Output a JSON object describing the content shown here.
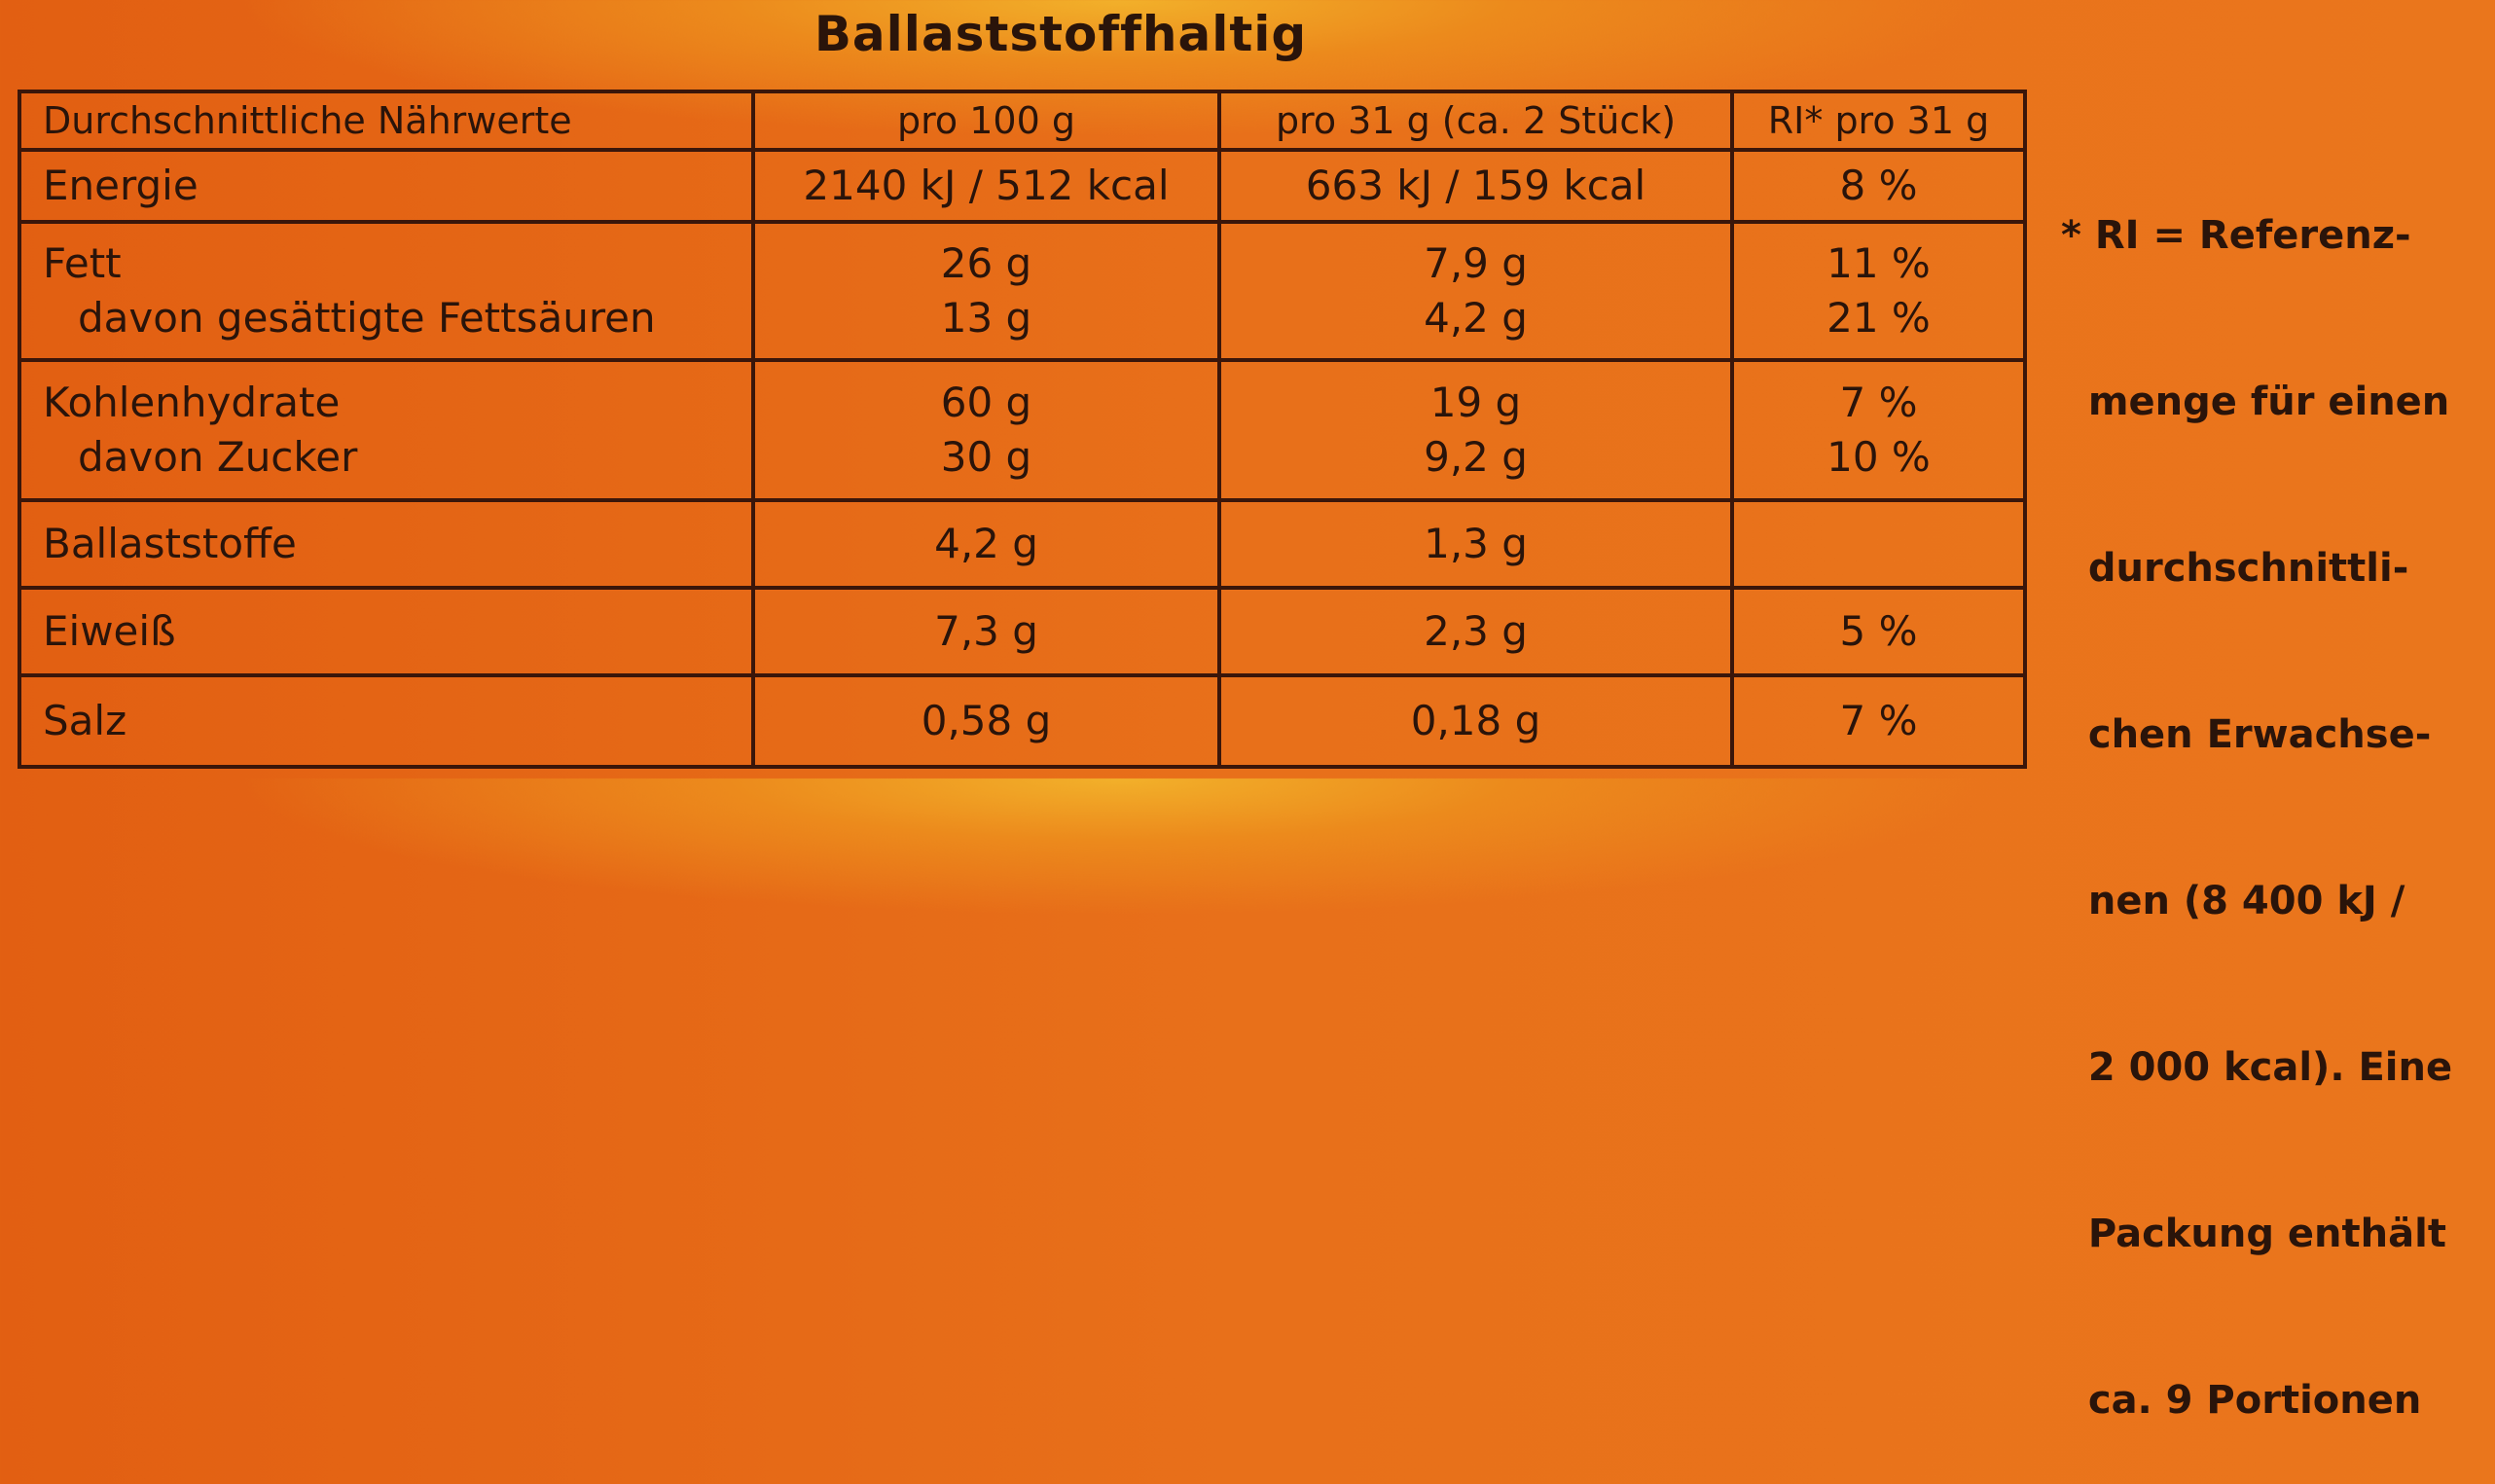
{
  "title": "Ballaststoffhaltig",
  "headers": [
    "Durchschnittliche Nährwerte",
    "pro 100 g",
    "pro 31 g (ca. 2 Stück)",
    "RI* pro 31 g"
  ],
  "rows": [
    {
      "label": "Energie",
      "per100": "2140 kJ / 512 kcal",
      "per31": "663 kJ / 159 kcal",
      "ri": "8 %"
    },
    {
      "label": "Fett",
      "per100": "26 g",
      "per31": "7,9 g",
      "ri": "11 %",
      "sub": {
        "label": "davon gesättigte Fettsäuren",
        "per100": "13 g",
        "per31": "4,2 g",
        "ri": "21 %"
      }
    },
    {
      "label": "Kohlenhydrate",
      "per100": "60 g",
      "per31": "19 g",
      "ri": "7 %",
      "sub": {
        "label": "davon Zucker",
        "per100": "30 g",
        "per31": "9,2 g",
        "ri": "10 %"
      }
    },
    {
      "label": "Ballaststoffe",
      "per100": "4,2 g",
      "per31": "1,3 g",
      "ri": ""
    },
    {
      "label": "Eiweiß",
      "per100": "7,3 g",
      "per31": "2,3 g",
      "ri": "5 %"
    },
    {
      "label": "Salz",
      "per100": "0,58 g",
      "per31": "0,18 g",
      "ri": "7 %"
    }
  ],
  "footnote": [
    "* RI = Referenz-",
    "  menge für einen",
    "  durchschnittli-",
    "  chen Erwachse-",
    "  nen (8 400 kJ /",
    "  2 000 kcal). Eine",
    "  Packung enthält",
    "  ca. 9 Portionen"
  ],
  "colors": {
    "background": "#e8701a",
    "text": "#2a140a",
    "lines": "#3a160a"
  }
}
